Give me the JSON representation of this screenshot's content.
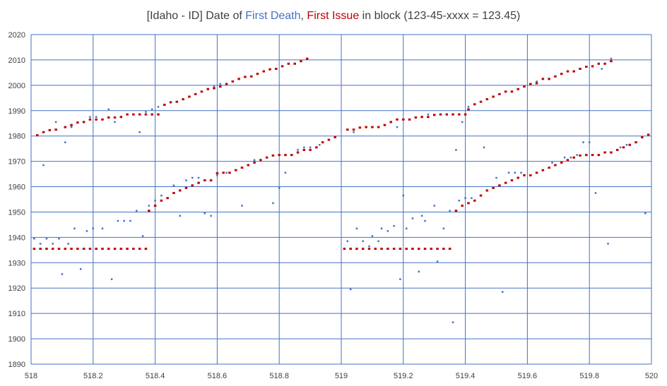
{
  "colors": {
    "first_death": "#4472C4",
    "first_issue": "#C00000",
    "grid": "#4472C4",
    "text": "#404040"
  },
  "chart_data": {
    "type": "scatter",
    "title": {
      "prefix": "[Idaho - ID] Date of ",
      "first_death": "First Death",
      "sep": ", ",
      "first_issue": "First Issue",
      "suffix": " in block (123-45-xxxx = 123.45)"
    },
    "xlim": [
      518,
      520
    ],
    "ylim": [
      1890,
      2020
    ],
    "x_ticks": [
      518,
      518.2,
      518.4,
      518.6,
      518.8,
      519,
      519.2,
      519.4,
      519.6,
      519.8,
      520
    ],
    "y_ticks": [
      1890,
      1900,
      1910,
      1920,
      1930,
      1940,
      1950,
      1960,
      1970,
      1980,
      1990,
      2000,
      2010,
      2020
    ],
    "grid": true,
    "series": [
      {
        "name": "First Death",
        "points": [
          [
            518.01,
            1939.5
          ],
          [
            518.03,
            1937.5
          ],
          [
            518.04,
            1968.5
          ],
          [
            518.05,
            1939.5
          ],
          [
            518.07,
            1937.5
          ],
          [
            518.08,
            1985.5
          ],
          [
            518.09,
            1939.5
          ],
          [
            518.1,
            1925.5
          ],
          [
            518.11,
            1977.5
          ],
          [
            518.12,
            1937.5
          ],
          [
            518.13,
            1983.5
          ],
          [
            518.14,
            1943.5
          ],
          [
            518.16,
            1927.5
          ],
          [
            518.18,
            1942.5
          ],
          [
            518.19,
            1987.5
          ],
          [
            518.2,
            1943.5
          ],
          [
            518.21,
            1987.5
          ],
          [
            518.23,
            1943.5
          ],
          [
            518.25,
            1990.5
          ],
          [
            518.26,
            1923.5
          ],
          [
            518.27,
            1985.5
          ],
          [
            518.28,
            1946.5
          ],
          [
            518.3,
            1946.5
          ],
          [
            518.32,
            1946.5
          ],
          [
            518.34,
            1950.5
          ],
          [
            518.35,
            1981.5
          ],
          [
            518.36,
            1940.5
          ],
          [
            518.37,
            1989.5
          ],
          [
            518.38,
            1952.5
          ],
          [
            518.39,
            1990.5
          ],
          [
            518.4,
            1954.5
          ],
          [
            518.41,
            1991.5
          ],
          [
            518.42,
            1956.5
          ],
          [
            518.46,
            1960.5
          ],
          [
            518.48,
            1948.5
          ],
          [
            518.5,
            1962.5
          ],
          [
            518.52,
            1963.5
          ],
          [
            518.54,
            1963.5
          ],
          [
            518.56,
            1949.5
          ],
          [
            518.58,
            1948.5
          ],
          [
            518.59,
            1999.5
          ],
          [
            518.6,
            1964.5
          ],
          [
            518.61,
            2000.5
          ],
          [
            518.63,
            1965.5
          ],
          [
            518.66,
            1966.5
          ],
          [
            518.68,
            1952.5
          ],
          [
            518.72,
            1970.5
          ],
          [
            518.78,
            1953.5
          ],
          [
            518.8,
            1959.5
          ],
          [
            518.82,
            1965.5
          ],
          [
            518.86,
            1974.5
          ],
          [
            518.88,
            1975.5
          ],
          [
            518.9,
            1975.5
          ],
          [
            518.93,
            1976.5
          ],
          [
            519.02,
            1938.5
          ],
          [
            519.03,
            1919.5
          ],
          [
            519.04,
            1981.5
          ],
          [
            519.05,
            1943.5
          ],
          [
            519.07,
            1938.5
          ],
          [
            519.09,
            1936.5
          ],
          [
            519.1,
            1940.5
          ],
          [
            519.12,
            1938.5
          ],
          [
            519.13,
            1943.5
          ],
          [
            519.15,
            1942.5
          ],
          [
            519.17,
            1944.5
          ],
          [
            519.18,
            1983.5
          ],
          [
            519.19,
            1923.5
          ],
          [
            519.2,
            1956.5
          ],
          [
            519.21,
            1943.5
          ],
          [
            519.23,
            1947.5
          ],
          [
            519.25,
            1926.5
          ],
          [
            519.26,
            1948.5
          ],
          [
            519.27,
            1946.5
          ],
          [
            519.28,
            1988.5
          ],
          [
            519.3,
            1952.5
          ],
          [
            519.31,
            1930.5
          ],
          [
            519.33,
            1943.5
          ],
          [
            519.35,
            1950.5
          ],
          [
            519.36,
            1906.5
          ],
          [
            519.37,
            1974.5
          ],
          [
            519.38,
            1954.5
          ],
          [
            519.39,
            1985.5
          ],
          [
            519.4,
            1955.5
          ],
          [
            519.41,
            1991.5
          ],
          [
            519.42,
            1955.5
          ],
          [
            519.46,
            1975.5
          ],
          [
            519.5,
            1963.5
          ],
          [
            519.52,
            1918.5
          ],
          [
            519.54,
            1965.5
          ],
          [
            519.56,
            1965.5
          ],
          [
            519.58,
            1965.5
          ],
          [
            519.63,
            2001.5
          ],
          [
            519.68,
            1969.5
          ],
          [
            519.72,
            1971.5
          ],
          [
            519.74,
            1971.5
          ],
          [
            519.76,
            1972.5
          ],
          [
            519.78,
            1977.5
          ],
          [
            519.8,
            1977.5
          ],
          [
            519.82,
            1957.5
          ],
          [
            519.84,
            2006.5
          ],
          [
            519.86,
            1937.5
          ],
          [
            519.87,
            2010.5
          ],
          [
            519.9,
            1975.5
          ],
          [
            519.92,
            1976.5
          ],
          [
            519.98,
            1949.5
          ]
        ]
      },
      {
        "name": "First Issue",
        "points": [
          [
            518.02,
            1980.3
          ],
          [
            518.04,
            1981.5
          ],
          [
            518.06,
            1982.3
          ],
          [
            518.08,
            1982.5
          ],
          [
            518.11,
            1983.5
          ],
          [
            518.13,
            1984.3
          ],
          [
            518.15,
            1985.3
          ],
          [
            518.17,
            1985.5
          ],
          [
            518.19,
            1986.5
          ],
          [
            518.21,
            1986.5
          ],
          [
            518.23,
            1986.5
          ],
          [
            518.25,
            1987.3
          ],
          [
            518.27,
            1987.3
          ],
          [
            518.29,
            1987.5
          ],
          [
            518.31,
            1988.5
          ],
          [
            518.33,
            1988.5
          ],
          [
            518.35,
            1988.5
          ],
          [
            518.37,
            1988.5
          ],
          [
            518.39,
            1988.5
          ],
          [
            518.41,
            1988.5
          ],
          [
            518.43,
            1992.3
          ],
          [
            518.45,
            1993.3
          ],
          [
            518.47,
            1993.5
          ],
          [
            518.49,
            1994.5
          ],
          [
            518.51,
            1995.5
          ],
          [
            518.53,
            1996.5
          ],
          [
            518.55,
            1997.5
          ],
          [
            518.57,
            1998.5
          ],
          [
            518.59,
            1998.8
          ],
          [
            518.61,
            1999.5
          ],
          [
            518.63,
            2000.5
          ],
          [
            518.65,
            2001.5
          ],
          [
            518.67,
            2002.5
          ],
          [
            518.69,
            2003.3
          ],
          [
            518.71,
            2003.5
          ],
          [
            518.73,
            2004.5
          ],
          [
            518.75,
            2005.5
          ],
          [
            518.77,
            2006.3
          ],
          [
            518.79,
            2006.5
          ],
          [
            518.81,
            2007.5
          ],
          [
            518.83,
            2008.5
          ],
          [
            518.85,
            2008.5
          ],
          [
            518.87,
            2009.5
          ],
          [
            518.89,
            2010.5
          ],
          [
            518.38,
            1950.5
          ],
          [
            518.4,
            1952.5
          ],
          [
            518.42,
            1954.5
          ],
          [
            518.44,
            1955.5
          ],
          [
            518.46,
            1957.5
          ],
          [
            518.48,
            1958.5
          ],
          [
            518.5,
            1959.5
          ],
          [
            518.52,
            1960.5
          ],
          [
            518.54,
            1961.5
          ],
          [
            518.56,
            1962.5
          ],
          [
            518.58,
            1962.5
          ],
          [
            518.6,
            1965.3
          ],
          [
            518.62,
            1965.5
          ],
          [
            518.64,
            1965.5
          ],
          [
            518.66,
            1966.5
          ],
          [
            518.68,
            1967.5
          ],
          [
            518.7,
            1968.5
          ],
          [
            518.72,
            1969.5
          ],
          [
            518.74,
            1970.5
          ],
          [
            518.76,
            1971.5
          ],
          [
            518.78,
            1972.3
          ],
          [
            518.8,
            1972.5
          ],
          [
            518.82,
            1972.5
          ],
          [
            518.84,
            1972.5
          ],
          [
            518.86,
            1973.5
          ],
          [
            518.88,
            1974.5
          ],
          [
            518.9,
            1974.5
          ],
          [
            518.92,
            1975.5
          ],
          [
            518.94,
            1977.5
          ],
          [
            518.96,
            1978.5
          ],
          [
            518.98,
            1979.5
          ],
          [
            519.02,
            1982.5
          ],
          [
            519.04,
            1982.5
          ],
          [
            519.06,
            1983.3
          ],
          [
            519.08,
            1983.5
          ],
          [
            519.1,
            1983.5
          ],
          [
            519.12,
            1983.5
          ],
          [
            519.14,
            1984.3
          ],
          [
            519.16,
            1985.5
          ],
          [
            519.18,
            1986.5
          ],
          [
            519.2,
            1986.5
          ],
          [
            519.22,
            1986.5
          ],
          [
            519.24,
            1987.3
          ],
          [
            519.26,
            1987.5
          ],
          [
            519.28,
            1987.5
          ],
          [
            519.3,
            1988.3
          ],
          [
            519.32,
            1988.5
          ],
          [
            519.34,
            1988.5
          ],
          [
            519.36,
            1988.5
          ],
          [
            519.38,
            1988.5
          ],
          [
            519.4,
            1988.5
          ],
          [
            519.41,
            1990.5
          ],
          [
            519.43,
            1992.5
          ],
          [
            519.45,
            1993.5
          ],
          [
            519.47,
            1994.5
          ],
          [
            519.49,
            1995.5
          ],
          [
            519.51,
            1996.5
          ],
          [
            519.53,
            1997.5
          ],
          [
            519.55,
            1997.5
          ],
          [
            519.57,
            1998.5
          ],
          [
            519.59,
            1999.5
          ],
          [
            519.61,
            2000.5
          ],
          [
            519.63,
            2000.8
          ],
          [
            519.65,
            2002.5
          ],
          [
            519.67,
            2002.5
          ],
          [
            519.69,
            2003.5
          ],
          [
            519.71,
            2004.5
          ],
          [
            519.73,
            2005.5
          ],
          [
            519.75,
            2005.5
          ],
          [
            519.77,
            2006.5
          ],
          [
            519.79,
            2007.3
          ],
          [
            519.81,
            2007.5
          ],
          [
            519.83,
            2008.5
          ],
          [
            519.85,
            2008.5
          ],
          [
            519.87,
            2009.5
          ],
          [
            519.37,
            1950.5
          ],
          [
            519.39,
            1952.5
          ],
          [
            519.41,
            1953.5
          ],
          [
            519.43,
            1954.5
          ],
          [
            519.45,
            1956.5
          ],
          [
            519.47,
            1958.5
          ],
          [
            519.49,
            1959.5
          ],
          [
            519.51,
            1960.5
          ],
          [
            519.53,
            1961.5
          ],
          [
            519.55,
            1962.5
          ],
          [
            519.57,
            1963.5
          ],
          [
            519.59,
            1964.5
          ],
          [
            519.61,
            1964.5
          ],
          [
            519.63,
            1965.5
          ],
          [
            519.65,
            1966.5
          ],
          [
            519.67,
            1967.5
          ],
          [
            519.69,
            1968.5
          ],
          [
            519.71,
            1969.5
          ],
          [
            519.73,
            1970.5
          ],
          [
            519.75,
            1971.5
          ],
          [
            519.77,
            1972.3
          ],
          [
            519.79,
            1972.5
          ],
          [
            519.81,
            1972.5
          ],
          [
            519.83,
            1972.5
          ],
          [
            519.85,
            1973.5
          ],
          [
            519.87,
            1973.5
          ],
          [
            519.89,
            1974.5
          ],
          [
            519.91,
            1975.5
          ],
          [
            519.93,
            1976.5
          ],
          [
            519.95,
            1977.5
          ],
          [
            519.97,
            1979.5
          ],
          [
            519.99,
            1980.5
          ],
          [
            518.01,
            1935.5
          ],
          [
            518.03,
            1935.5
          ],
          [
            518.05,
            1935.5
          ],
          [
            518.07,
            1935.5
          ],
          [
            518.09,
            1935.5
          ],
          [
            518.11,
            1935.5
          ],
          [
            518.13,
            1935.5
          ],
          [
            518.15,
            1935.5
          ],
          [
            518.17,
            1935.5
          ],
          [
            518.19,
            1935.5
          ],
          [
            518.21,
            1935.5
          ],
          [
            518.23,
            1935.5
          ],
          [
            518.25,
            1935.5
          ],
          [
            518.27,
            1935.5
          ],
          [
            518.29,
            1935.5
          ],
          [
            518.31,
            1935.5
          ],
          [
            518.33,
            1935.5
          ],
          [
            518.35,
            1935.5
          ],
          [
            518.37,
            1935.5
          ],
          [
            519.01,
            1935.5
          ],
          [
            519.03,
            1935.5
          ],
          [
            519.05,
            1935.5
          ],
          [
            519.07,
            1935.5
          ],
          [
            519.09,
            1935.5
          ],
          [
            519.11,
            1935.5
          ],
          [
            519.13,
            1935.5
          ],
          [
            519.15,
            1935.5
          ],
          [
            519.17,
            1935.5
          ],
          [
            519.19,
            1935.5
          ],
          [
            519.21,
            1935.5
          ],
          [
            519.23,
            1935.5
          ],
          [
            519.25,
            1935.5
          ],
          [
            519.27,
            1935.5
          ],
          [
            519.29,
            1935.5
          ],
          [
            519.31,
            1935.5
          ],
          [
            519.33,
            1935.5
          ],
          [
            519.35,
            1935.5
          ]
        ]
      }
    ]
  }
}
